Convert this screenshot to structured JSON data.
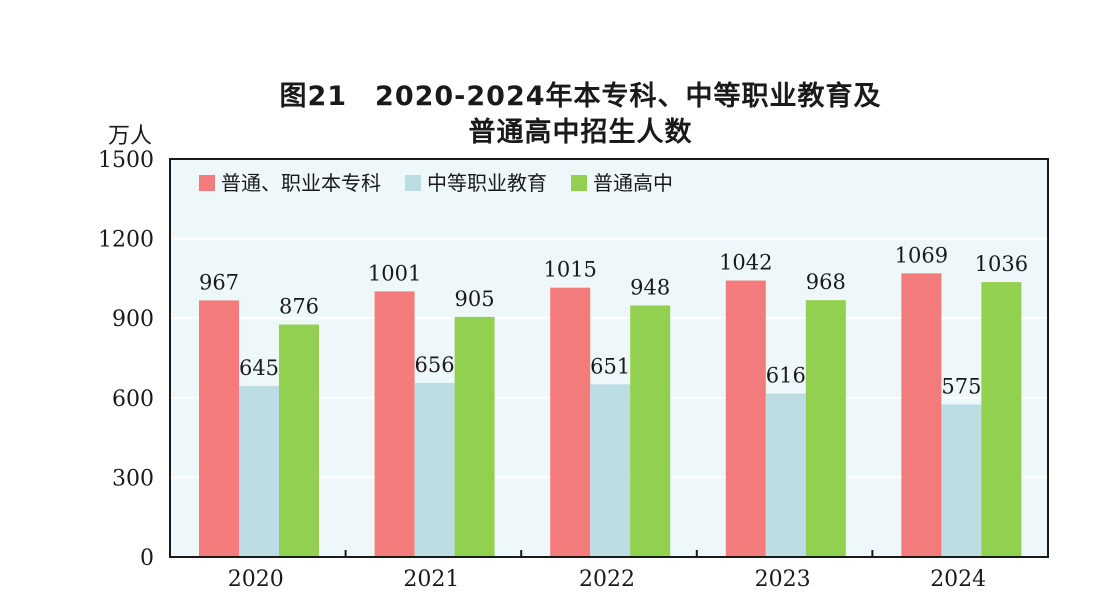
{
  "chart_data": {
    "type": "bar",
    "title_line1": "图21　2020-2024年本专科、中等职业教育及",
    "title_line2": "普通高中招生人数",
    "unit": "万人",
    "categories": [
      "2020",
      "2021",
      "2022",
      "2023",
      "2024"
    ],
    "series": [
      {
        "name": "普通、职业本专科",
        "color": "#f47b7b",
        "values": [
          967,
          1001,
          1015,
          1042,
          1069
        ]
      },
      {
        "name": "中等职业教育",
        "color": "#bddde5",
        "values": [
          645,
          656,
          651,
          616,
          575
        ]
      },
      {
        "name": "普通高中",
        "color": "#92d050",
        "values": [
          876,
          905,
          948,
          968,
          1036
        ]
      }
    ],
    "ylim": [
      0,
      1500
    ],
    "yticks": [
      0,
      300,
      600,
      900,
      1200,
      1500
    ],
    "grid": true,
    "plot_background": "#eef7f9",
    "legend_position": "top-left"
  }
}
